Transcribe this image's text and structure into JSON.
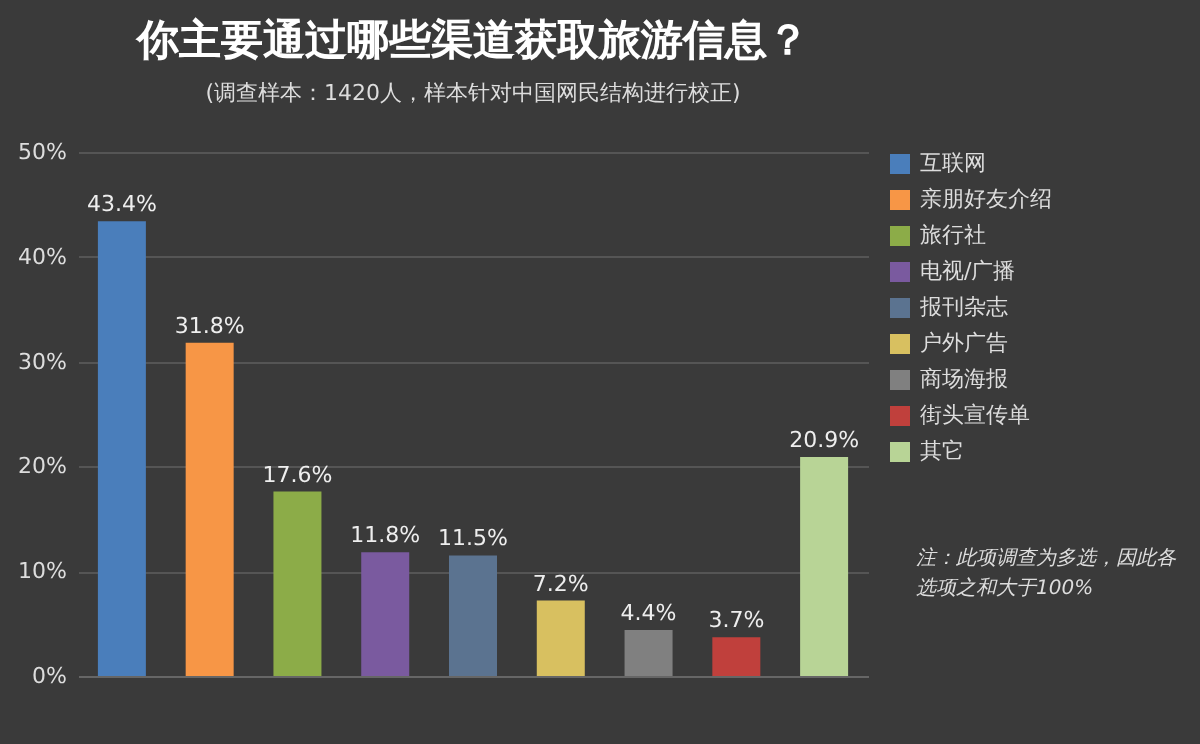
{
  "chart_data": {
    "type": "bar",
    "title": "你主要通过哪些渠道获取旅游信息？",
    "subtitle": "(调查样本：1420人，样本针对中国网民结构进行校正)",
    "categories": [
      null,
      null,
      null,
      null,
      null,
      null,
      null,
      null,
      null
    ],
    "series": [
      {
        "name": "互联网",
        "color": "#4a7ebb",
        "values": [
          43.4,
          null,
          null,
          null,
          null,
          null,
          null,
          null,
          null
        ],
        "value_labels": [
          "43.4%",
          null,
          null,
          null,
          null,
          null,
          null,
          null,
          null
        ]
      },
      {
        "name": "亲朋好友介绍",
        "color": "#f79646",
        "values": [
          null,
          31.8,
          null,
          null,
          null,
          null,
          null,
          null,
          null
        ],
        "value_labels": [
          null,
          "31.8%",
          null,
          null,
          null,
          null,
          null,
          null,
          null
        ]
      },
      {
        "name": "旅行社",
        "color": "#8cac48",
        "values": [
          null,
          null,
          17.6,
          null,
          null,
          null,
          null,
          null,
          null
        ],
        "value_labels": [
          null,
          null,
          "17.6%",
          null,
          null,
          null,
          null,
          null,
          null
        ]
      },
      {
        "name": "电视/广播",
        "color": "#7a5a9f",
        "values": [
          null,
          null,
          null,
          11.8,
          null,
          null,
          null,
          null,
          null
        ],
        "value_labels": [
          null,
          null,
          null,
          "11.8%",
          null,
          null,
          null,
          null,
          null
        ]
      },
      {
        "name": "报刊杂志",
        "color": "#5b7390",
        "values": [
          null,
          null,
          null,
          null,
          11.5,
          null,
          null,
          null,
          null
        ],
        "value_labels": [
          null,
          null,
          null,
          null,
          "11.5%",
          null,
          null,
          null,
          null
        ]
      },
      {
        "name": "户外广告",
        "color": "#d8c060",
        "values": [
          null,
          null,
          null,
          null,
          null,
          7.2,
          null,
          null,
          null
        ],
        "value_labels": [
          null,
          null,
          null,
          null,
          null,
          "7.2%",
          null,
          null,
          null
        ]
      },
      {
        "name": "商场海报",
        "color": "#808080",
        "values": [
          null,
          null,
          null,
          null,
          null,
          null,
          4.4,
          null,
          null
        ],
        "value_labels": [
          null,
          null,
          null,
          null,
          null,
          null,
          "4.4%",
          null,
          null
        ]
      },
      {
        "name": "街头宣传单",
        "color": "#c0403c",
        "values": [
          null,
          null,
          null,
          null,
          null,
          null,
          null,
          3.7,
          null
        ],
        "value_labels": [
          null,
          null,
          null,
          null,
          null,
          null,
          null,
          "3.7%",
          null
        ]
      },
      {
        "name": "其它",
        "color": "#b8d496",
        "values": [
          null,
          null,
          null,
          null,
          null,
          null,
          null,
          null,
          20.9
        ],
        "value_labels": [
          null,
          null,
          null,
          null,
          null,
          null,
          null,
          null,
          "20.9%"
        ]
      }
    ],
    "ylim": [
      0,
      50
    ],
    "yticks": [
      {
        "value": 0,
        "label": "0%"
      },
      {
        "value": 10,
        "label": "10%"
      },
      {
        "value": 20,
        "label": "20%"
      },
      {
        "value": 30,
        "label": "30%"
      },
      {
        "value": 40,
        "label": "40%"
      },
      {
        "value": 50,
        "label": "50%"
      }
    ],
    "grid": "y",
    "legend": "right",
    "tick_labels": "y",
    "annotations": [
      "注：此项调查为多选，因此各选项之和大于100%"
    ]
  }
}
